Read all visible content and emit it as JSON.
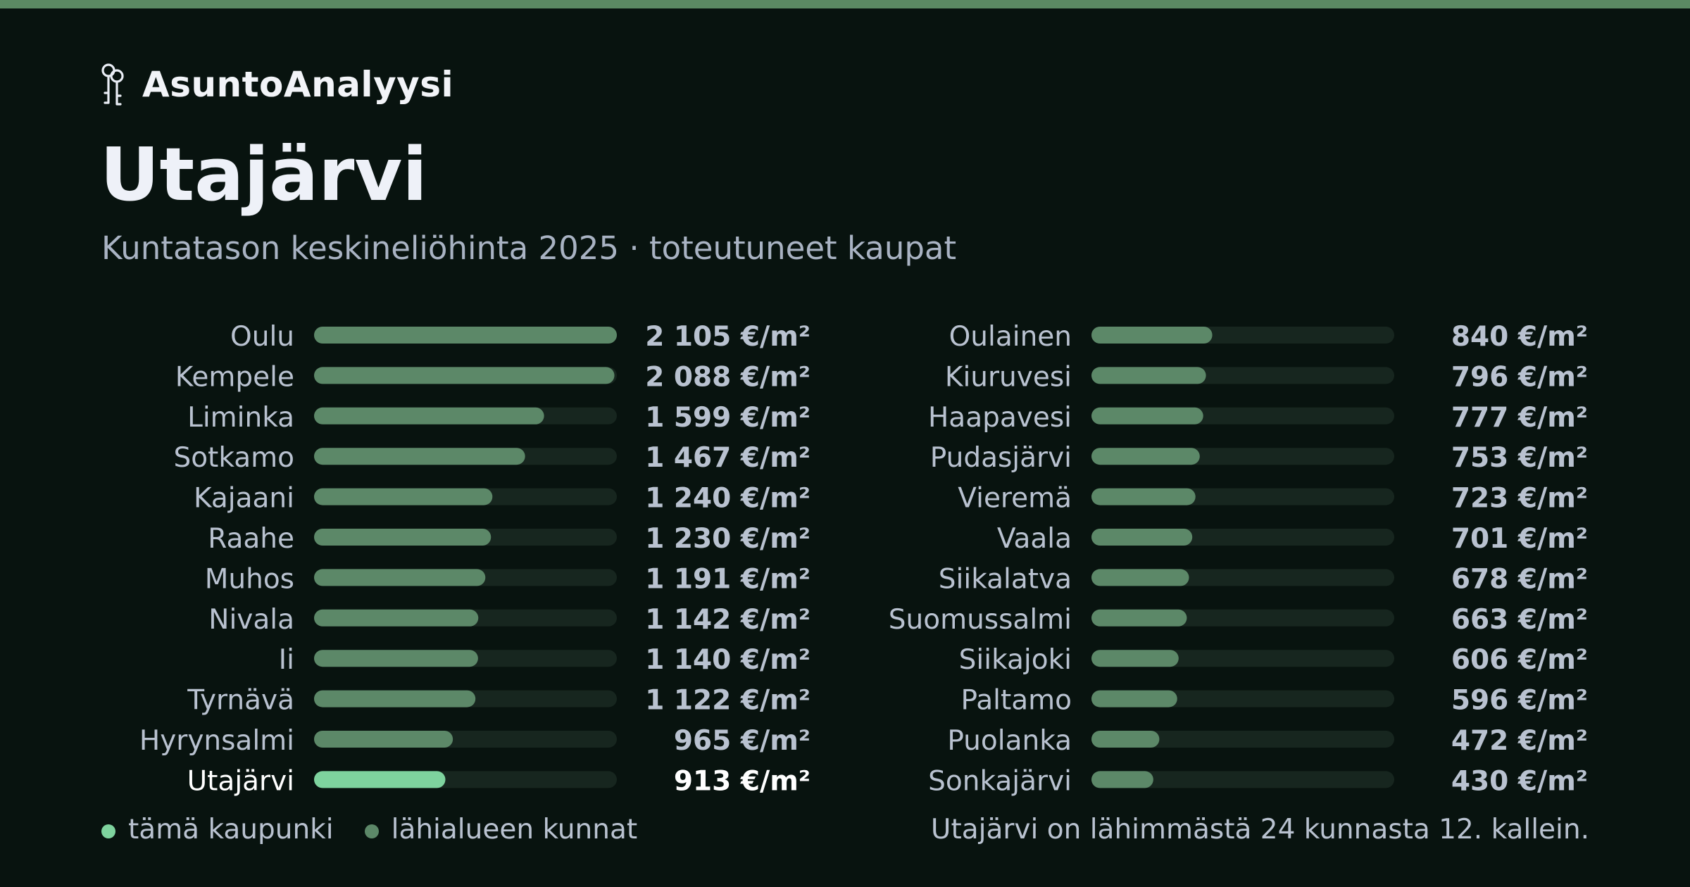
{
  "brand": {
    "name": "AsuntoAnalyysi",
    "icon": "keys-icon"
  },
  "header": {
    "title": "Utajärvi",
    "subtitle": "Kuntatason keskineliöhinta 2025 · toteutuneet kaupat"
  },
  "colors": {
    "background": "#08130f",
    "top_strip": "#5b8a63",
    "bar_neighbor": "#5c8868",
    "bar_highlight": "#7ed39e",
    "bar_track": "#17261f",
    "label_text": "#b9c2d0",
    "highlight_text": "#ffffff"
  },
  "chart_data": {
    "type": "bar",
    "orientation": "horizontal",
    "unit": "€/m²",
    "xlim": [
      0,
      2105
    ],
    "highlight": "Utajärvi",
    "categories": [
      "Oulu",
      "Kempele",
      "Liminka",
      "Sotkamo",
      "Kajaani",
      "Raahe",
      "Muhos",
      "Nivala",
      "Ii",
      "Tyrnävä",
      "Hyrynsalmi",
      "Utajärvi",
      "Oulainen",
      "Kiuruvesi",
      "Haapavesi",
      "Pudasjärvi",
      "Vieremä",
      "Vaala",
      "Siikalatva",
      "Suomussalmi",
      "Siikajoki",
      "Paltamo",
      "Puolanka",
      "Sonkajärvi"
    ],
    "values": [
      2105,
      2088,
      1599,
      1467,
      1240,
      1230,
      1191,
      1142,
      1140,
      1122,
      965,
      913,
      840,
      796,
      777,
      753,
      723,
      701,
      678,
      663,
      606,
      596,
      472,
      430
    ],
    "value_labels": [
      "2 105 €/m²",
      "2 088 €/m²",
      "1 599 €/m²",
      "1 467 €/m²",
      "1 240 €/m²",
      "1 230 €/m²",
      "1 191 €/m²",
      "1 142 €/m²",
      "1 140 €/m²",
      "1 122 €/m²",
      "965 €/m²",
      "913 €/m²",
      "840 €/m²",
      "796 €/m²",
      "777 €/m²",
      "753 €/m²",
      "723 €/m²",
      "701 €/m²",
      "678 €/m²",
      "663 €/m²",
      "606 €/m²",
      "596 €/m²",
      "472 €/m²",
      "430 €/m²"
    ],
    "columns": 2,
    "legend": [
      {
        "label": "tämä kaupunki",
        "color": "#7ed39e"
      },
      {
        "label": "lähialueen kunnat",
        "color": "#5c8868"
      }
    ]
  },
  "footnote": "Utajärvi on lähimmästä 24 kunnasta 12. kallein."
}
